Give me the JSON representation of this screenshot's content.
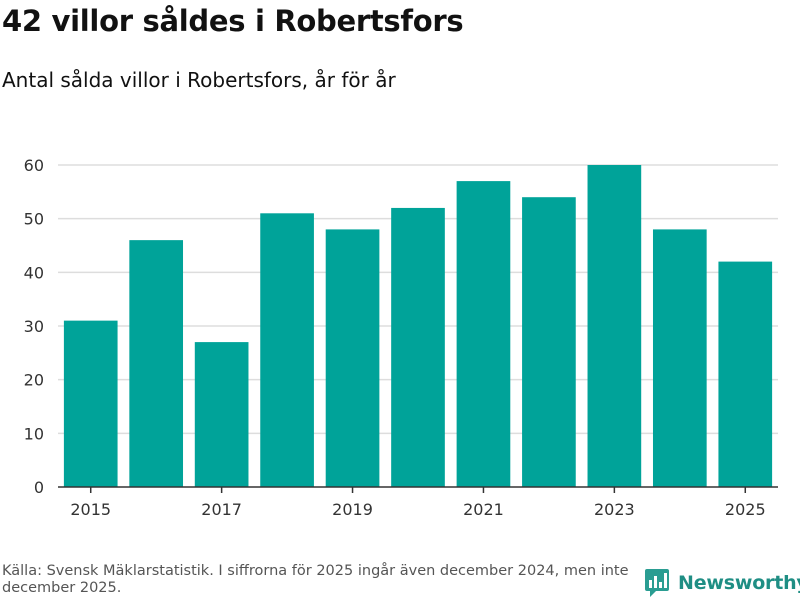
{
  "title": "42 villor såldes i Robertsfors",
  "subtitle": "Antal sålda villor i Robertsfors, år för år",
  "source": "Källa: Svensk Mäklarstatistik. I siffrorna för 2025 ingår även december 2024, men inte december 2025.",
  "brand": {
    "name": "Newsworthy",
    "icon": "newsworthy-logo-icon"
  },
  "colors": {
    "bar": "#00a399",
    "grid": "#dddddd",
    "axis": "#333333",
    "tick_text": "#333333"
  },
  "chart_data": {
    "type": "bar",
    "title": "Antal sålda villor i Robertsfors, år för år",
    "xlabel": "",
    "ylabel": "",
    "categories": [
      "2015",
      "2016",
      "2017",
      "2018",
      "2019",
      "2020",
      "2021",
      "2022",
      "2023",
      "2024",
      "2025"
    ],
    "values": [
      31,
      46,
      27,
      51,
      48,
      52,
      57,
      54,
      60,
      48,
      42
    ],
    "x_tick_labels": [
      "2015",
      "2017",
      "2019",
      "2021",
      "2023",
      "2025"
    ],
    "y_ticks": [
      0,
      10,
      20,
      30,
      40,
      50,
      60
    ],
    "ylim": [
      0,
      60
    ],
    "grid": true,
    "legend": "none"
  }
}
